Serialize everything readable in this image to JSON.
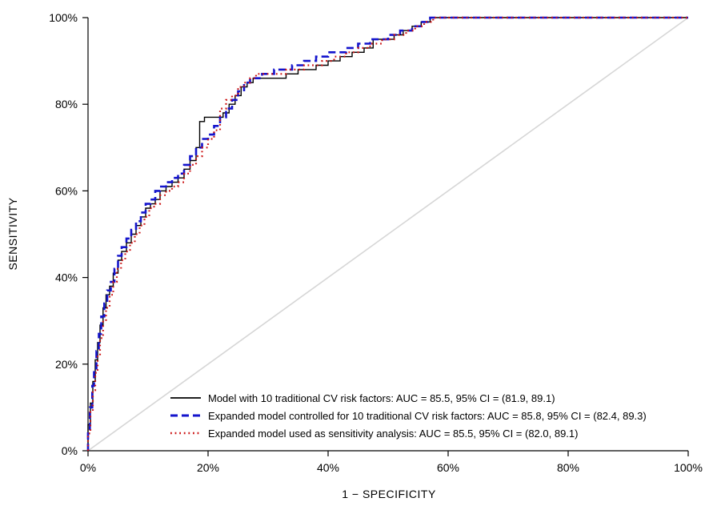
{
  "chart_data": {
    "type": "line",
    "title": "",
    "xlabel": "1 − SPECIFICITY",
    "ylabel": "SENSITIVITY",
    "xlim": [
      0,
      100
    ],
    "ylim": [
      0,
      100
    ],
    "grid": false,
    "legend_position": "inside-bottom-left",
    "xticks": [
      "0%",
      "20%",
      "40%",
      "60%",
      "80%",
      "100%"
    ],
    "xtick_values": [
      0,
      20,
      40,
      60,
      80,
      100
    ],
    "yticks": [
      "0%",
      "20%",
      "40%",
      "60%",
      "80%",
      "100%"
    ],
    "ytick_values": [
      0,
      20,
      40,
      60,
      80,
      100
    ],
    "reference_line": {
      "from": [
        0,
        0
      ],
      "to": [
        100,
        100
      ],
      "color": "#d6d6d6"
    },
    "series": [
      {
        "name": "Model with 10 traditional CV risk factors: AUC = 85.5, 95% CI = (81.9, 89.1)",
        "color": "#000000",
        "style": "solid",
        "points": [
          [
            0,
            0
          ],
          [
            0,
            6
          ],
          [
            0.4,
            6
          ],
          [
            0.4,
            11
          ],
          [
            0.8,
            11
          ],
          [
            0.8,
            16
          ],
          [
            1.2,
            16
          ],
          [
            1.2,
            21
          ],
          [
            1.6,
            21
          ],
          [
            1.6,
            25
          ],
          [
            2,
            25
          ],
          [
            2,
            29
          ],
          [
            2.5,
            29
          ],
          [
            2.5,
            33
          ],
          [
            3,
            33
          ],
          [
            3,
            36
          ],
          [
            3.6,
            36
          ],
          [
            3.6,
            38
          ],
          [
            4.2,
            38
          ],
          [
            4.2,
            41
          ],
          [
            5,
            41
          ],
          [
            5,
            44
          ],
          [
            5.6,
            44
          ],
          [
            5.6,
            46
          ],
          [
            6.4,
            46
          ],
          [
            6.4,
            48
          ],
          [
            7.2,
            48
          ],
          [
            7.2,
            50
          ],
          [
            8,
            50
          ],
          [
            8,
            52
          ],
          [
            8.8,
            52
          ],
          [
            8.8,
            54
          ],
          [
            9.6,
            54
          ],
          [
            9.6,
            56
          ],
          [
            10.4,
            56
          ],
          [
            10.4,
            57
          ],
          [
            11.2,
            57
          ],
          [
            11.2,
            58
          ],
          [
            12,
            58
          ],
          [
            12,
            60
          ],
          [
            13,
            60
          ],
          [
            13,
            61
          ],
          [
            14,
            61
          ],
          [
            14,
            62
          ],
          [
            15,
            62
          ],
          [
            15,
            63
          ],
          [
            16,
            63
          ],
          [
            16,
            65
          ],
          [
            17,
            65
          ],
          [
            17,
            67
          ],
          [
            18,
            67
          ],
          [
            18,
            70
          ],
          [
            18.6,
            70
          ],
          [
            18.6,
            76
          ],
          [
            19.4,
            76
          ],
          [
            19.4,
            77
          ],
          [
            22.5,
            77
          ],
          [
            22.5,
            78
          ],
          [
            23.5,
            78
          ],
          [
            23.5,
            80
          ],
          [
            24.5,
            80
          ],
          [
            24.5,
            82
          ],
          [
            25.5,
            82
          ],
          [
            25.5,
            84
          ],
          [
            26.5,
            84
          ],
          [
            26.5,
            85
          ],
          [
            27.5,
            85
          ],
          [
            27.5,
            86
          ],
          [
            28.5,
            86
          ],
          [
            33,
            86
          ],
          [
            33,
            87
          ],
          [
            35,
            87
          ],
          [
            35,
            88
          ],
          [
            38,
            88
          ],
          [
            38,
            89
          ],
          [
            40,
            89
          ],
          [
            40,
            90
          ],
          [
            42,
            90
          ],
          [
            42,
            91
          ],
          [
            44,
            91
          ],
          [
            44,
            92
          ],
          [
            46,
            92
          ],
          [
            46,
            93
          ],
          [
            47.5,
            93
          ],
          [
            47.5,
            95
          ],
          [
            51,
            95
          ],
          [
            51,
            96
          ],
          [
            52.5,
            96
          ],
          [
            52.5,
            97
          ],
          [
            54,
            97
          ],
          [
            54,
            98
          ],
          [
            55.5,
            98
          ],
          [
            55.5,
            99
          ],
          [
            57,
            99
          ],
          [
            57,
            100
          ],
          [
            62,
            100
          ],
          [
            100,
            100
          ]
        ]
      },
      {
        "name": "Expanded model controlled for 10 traditional CV risk factors: AUC = 85.8, 95% CI = (82.4, 89.3)",
        "color": "#1414cc",
        "style": "dashed",
        "points": [
          [
            0,
            0
          ],
          [
            0,
            5
          ],
          [
            0.3,
            5
          ],
          [
            0.3,
            10
          ],
          [
            0.7,
            10
          ],
          [
            0.7,
            15
          ],
          [
            1,
            15
          ],
          [
            1,
            19
          ],
          [
            1.4,
            19
          ],
          [
            1.4,
            23
          ],
          [
            1.8,
            23
          ],
          [
            1.8,
            27
          ],
          [
            2.2,
            27
          ],
          [
            2.2,
            31
          ],
          [
            2.7,
            31
          ],
          [
            2.7,
            34
          ],
          [
            3.2,
            34
          ],
          [
            3.2,
            37
          ],
          [
            3.8,
            37
          ],
          [
            3.8,
            39
          ],
          [
            4.4,
            39
          ],
          [
            4.4,
            42
          ],
          [
            5,
            42
          ],
          [
            5,
            45
          ],
          [
            5.6,
            45
          ],
          [
            5.6,
            47
          ],
          [
            6.4,
            47
          ],
          [
            6.4,
            49
          ],
          [
            7.2,
            49
          ],
          [
            7.2,
            51
          ],
          [
            8,
            51
          ],
          [
            8,
            53
          ],
          [
            8.8,
            53
          ],
          [
            8.8,
            55
          ],
          [
            9.6,
            55
          ],
          [
            9.6,
            57
          ],
          [
            10.4,
            57
          ],
          [
            10.4,
            58
          ],
          [
            11.2,
            58
          ],
          [
            11.2,
            60
          ],
          [
            12,
            60
          ],
          [
            12,
            61
          ],
          [
            13,
            61
          ],
          [
            13,
            62
          ],
          [
            14,
            62
          ],
          [
            14,
            63
          ],
          [
            15,
            63
          ],
          [
            15,
            64
          ],
          [
            16,
            64
          ],
          [
            16,
            66
          ],
          [
            17,
            66
          ],
          [
            17,
            68
          ],
          [
            18,
            68
          ],
          [
            18,
            70
          ],
          [
            19,
            70
          ],
          [
            19,
            72
          ],
          [
            20,
            72
          ],
          [
            20,
            73
          ],
          [
            21,
            73
          ],
          [
            21,
            75
          ],
          [
            22,
            75
          ],
          [
            22,
            77
          ],
          [
            23,
            77
          ],
          [
            23,
            79
          ],
          [
            24,
            79
          ],
          [
            24,
            81
          ],
          [
            25,
            81
          ],
          [
            25,
            83
          ],
          [
            26,
            83
          ],
          [
            26,
            85
          ],
          [
            27,
            85
          ],
          [
            27,
            86
          ],
          [
            29,
            86
          ],
          [
            29,
            87
          ],
          [
            31,
            87
          ],
          [
            31,
            88
          ],
          [
            34,
            88
          ],
          [
            34,
            89
          ],
          [
            36,
            89
          ],
          [
            36,
            90
          ],
          [
            38,
            90
          ],
          [
            38,
            91
          ],
          [
            40,
            91
          ],
          [
            40,
            92
          ],
          [
            43,
            92
          ],
          [
            43,
            93
          ],
          [
            45,
            93
          ],
          [
            45,
            94
          ],
          [
            47,
            94
          ],
          [
            47,
            95
          ],
          [
            50,
            95
          ],
          [
            50,
            96
          ],
          [
            52,
            96
          ],
          [
            52,
            97
          ],
          [
            54,
            97
          ],
          [
            54,
            98
          ],
          [
            55.5,
            98
          ],
          [
            55.5,
            99
          ],
          [
            57,
            99
          ],
          [
            57,
            100
          ],
          [
            62,
            100
          ],
          [
            100,
            100
          ]
        ]
      },
      {
        "name": "Expanded model used as sensitivity analysis: AUC = 85.5, 95% CI = (82.0, 89.1)",
        "color": "#cc1414",
        "style": "dotted",
        "points": [
          [
            0,
            0
          ],
          [
            0,
            4
          ],
          [
            0.4,
            4
          ],
          [
            0.4,
            9
          ],
          [
            0.8,
            9
          ],
          [
            0.8,
            14
          ],
          [
            1.2,
            14
          ],
          [
            1.2,
            18
          ],
          [
            1.6,
            18
          ],
          [
            1.6,
            22
          ],
          [
            2,
            22
          ],
          [
            2,
            26
          ],
          [
            2.5,
            26
          ],
          [
            2.5,
            30
          ],
          [
            3,
            30
          ],
          [
            3,
            33
          ],
          [
            3.6,
            33
          ],
          [
            3.6,
            36
          ],
          [
            4.2,
            36
          ],
          [
            4.2,
            39
          ],
          [
            4.8,
            39
          ],
          [
            4.8,
            42
          ],
          [
            5.5,
            42
          ],
          [
            5.5,
            44
          ],
          [
            6.2,
            44
          ],
          [
            6.2,
            46
          ],
          [
            7,
            46
          ],
          [
            7,
            48
          ],
          [
            7.8,
            48
          ],
          [
            7.8,
            50
          ],
          [
            8.6,
            50
          ],
          [
            8.6,
            52
          ],
          [
            9.4,
            52
          ],
          [
            9.4,
            54
          ],
          [
            10.2,
            54
          ],
          [
            10.2,
            56
          ],
          [
            11,
            56
          ],
          [
            11,
            57
          ],
          [
            12,
            57
          ],
          [
            12,
            59
          ],
          [
            13,
            59
          ],
          [
            13,
            60
          ],
          [
            14,
            60
          ],
          [
            14,
            61
          ],
          [
            15,
            61
          ],
          [
            15,
            62
          ],
          [
            16,
            62
          ],
          [
            16,
            64
          ],
          [
            17,
            64
          ],
          [
            17,
            66
          ],
          [
            18,
            66
          ],
          [
            18,
            68
          ],
          [
            19,
            68
          ],
          [
            19,
            70
          ],
          [
            20,
            70
          ],
          [
            20,
            72
          ],
          [
            21,
            72
          ],
          [
            21,
            74
          ],
          [
            22,
            74
          ],
          [
            22,
            79
          ],
          [
            23,
            79
          ],
          [
            23,
            81
          ],
          [
            24,
            81
          ],
          [
            24,
            82
          ],
          [
            25,
            82
          ],
          [
            25,
            84
          ],
          [
            26,
            84
          ],
          [
            26,
            85
          ],
          [
            27,
            85
          ],
          [
            27,
            86
          ],
          [
            28,
            86
          ],
          [
            28,
            87
          ],
          [
            33,
            87
          ],
          [
            33,
            88
          ],
          [
            36,
            88
          ],
          [
            36,
            89
          ],
          [
            39,
            89
          ],
          [
            39,
            90
          ],
          [
            41,
            90
          ],
          [
            41,
            91
          ],
          [
            43,
            91
          ],
          [
            43,
            92
          ],
          [
            45,
            92
          ],
          [
            45,
            93
          ],
          [
            47,
            93
          ],
          [
            47,
            94
          ],
          [
            49,
            94
          ],
          [
            49,
            95
          ],
          [
            51,
            95
          ],
          [
            51,
            96
          ],
          [
            53,
            96
          ],
          [
            53,
            97
          ],
          [
            54.5,
            97
          ],
          [
            54.5,
            98
          ],
          [
            56,
            98
          ],
          [
            56,
            99
          ],
          [
            57.5,
            99
          ],
          [
            57.5,
            100
          ],
          [
            62,
            100
          ],
          [
            100,
            100
          ]
        ]
      }
    ]
  }
}
